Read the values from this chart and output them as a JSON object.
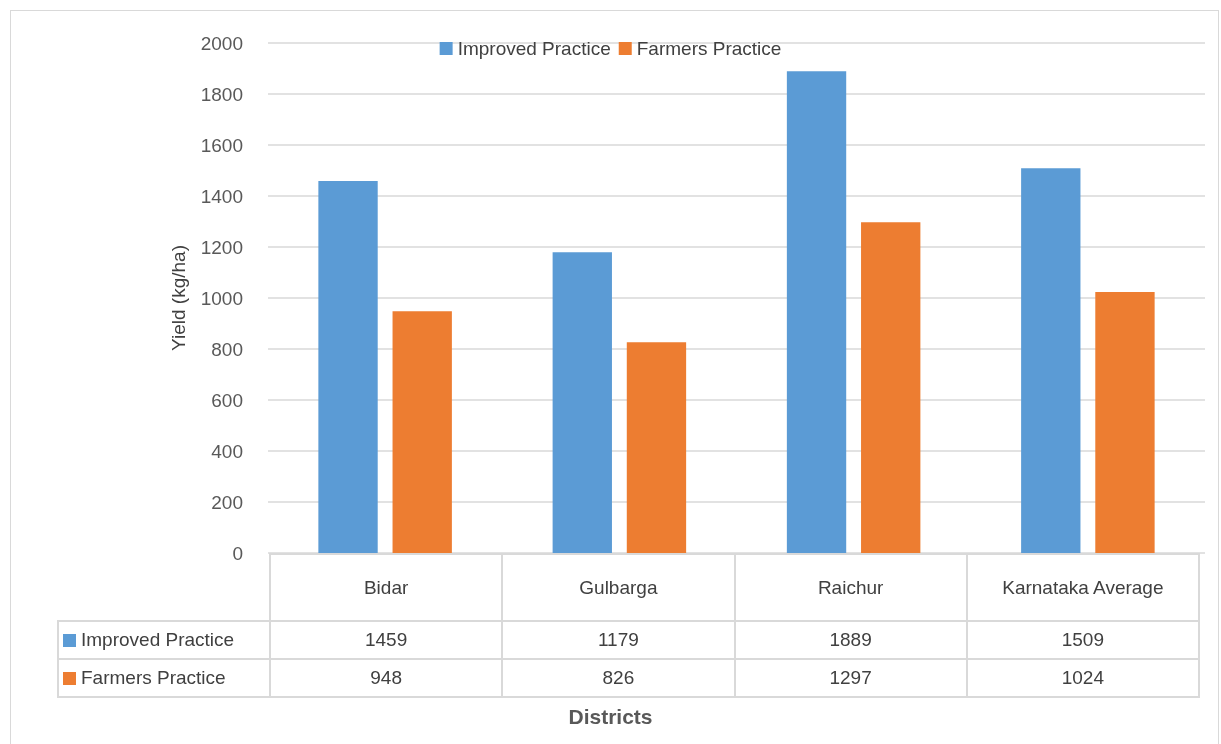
{
  "chart_data": {
    "type": "bar",
    "annotations": [
      "Districts"
    ],
    "ylabel": "Yield (kg/ha)",
    "categories": [
      "Bidar",
      "Gulbarga",
      "Raichur",
      "Karnataka Average"
    ],
    "series": [
      {
        "name": "Improved Practice",
        "color": "#5b9bd5",
        "values": [
          1459,
          1179,
          1889,
          1509
        ]
      },
      {
        "name": "Farmers Practice",
        "color": "#ed7d31",
        "values": [
          948,
          826,
          1297,
          1024
        ]
      }
    ],
    "ylim": [
      0,
      2000
    ],
    "yticks": [
      0,
      200,
      400,
      600,
      800,
      1000,
      1200,
      1400,
      1600,
      1800,
      2000
    ],
    "grid": true,
    "legend": "top",
    "data_labels": true
  }
}
